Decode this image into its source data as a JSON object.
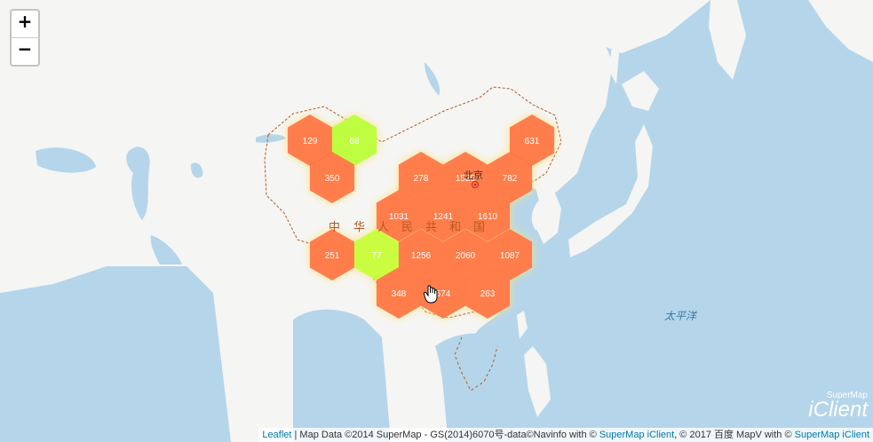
{
  "map": {
    "zoom_in": "+",
    "zoom_out": "−",
    "country_chars": [
      "中",
      "华",
      "人",
      "民",
      "共",
      "和",
      "国"
    ],
    "capital_label": "北京",
    "ocean_label": "太平洋"
  },
  "hexbins": [
    {
      "value": "129",
      "color": "#ff7445"
    },
    {
      "value": "68",
      "color": "#b8ff3a"
    },
    {
      "value": "350",
      "color": "#ff7445"
    },
    {
      "value": "631",
      "color": "#ff7445"
    },
    {
      "value": "278",
      "color": "#ff7445"
    },
    {
      "value": "1525",
      "color": "#ff7445"
    },
    {
      "value": "782",
      "color": "#ff7445"
    },
    {
      "value": "1031",
      "color": "#ff7445"
    },
    {
      "value": "1241",
      "color": "#ff7445"
    },
    {
      "value": "1610",
      "color": "#ff7445"
    },
    {
      "value": "251",
      "color": "#ff7445"
    },
    {
      "value": "77",
      "color": "#c6ff3a"
    },
    {
      "value": "1256",
      "color": "#ff7445"
    },
    {
      "value": "2060",
      "color": "#ff7445"
    },
    {
      "value": "1087",
      "color": "#ff7445"
    },
    {
      "value": "348",
      "color": "#ff7445"
    },
    {
      "value": "574",
      "color": "#ff7445"
    },
    {
      "value": "263",
      "color": "#ff7445"
    }
  ],
  "attribution": {
    "leaflet": "Leaflet",
    "text1": " | Map Data ©2014 SuperMap - GS(2014)6070号-data©Navinfo with © ",
    "link1": "SuperMap iClient",
    "text2": ", © 2017 百度 MapV with © ",
    "link2": "SuperMap iClient"
  },
  "logo": {
    "brand": "SuperMap",
    "name": "iClient"
  },
  "colors": {
    "ocean": "#b5d5ea",
    "land": "#f5f5f4",
    "high": "#ff7445",
    "low": "#b8ff3a",
    "border": "#b35a1f"
  }
}
